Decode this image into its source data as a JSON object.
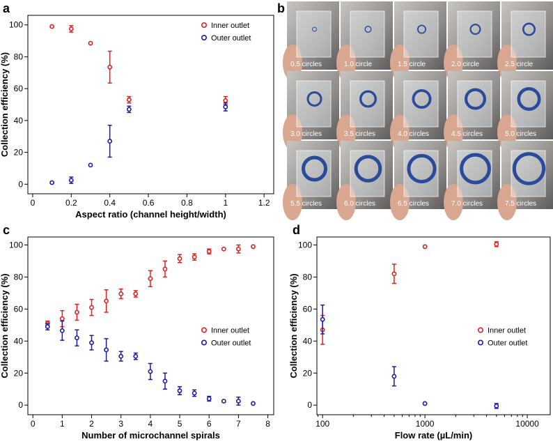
{
  "chart_data": [
    {
      "type": "scatter",
      "panel": "a",
      "x_label": "Aspect ratio (channel height/width)",
      "y_label": "Collection efficiency (%)",
      "x": [
        0.1,
        0.2,
        0.3,
        0.4,
        0.5,
        1.0
      ],
      "xlim": [
        -0.025,
        1.25
      ],
      "xticks": [
        0,
        0.2,
        0.4,
        0.6,
        0.8,
        1.0,
        1.2
      ],
      "ylim": [
        -6,
        106
      ],
      "yticks": [
        0,
        20,
        40,
        60,
        80,
        100
      ],
      "legend": "upper right",
      "series": [
        {
          "name": "Inner outlet",
          "color": "#e02020",
          "values": [
            99,
            97.5,
            88.5,
            73.5,
            53,
            52.5
          ],
          "errors": [
            0.5,
            2,
            0.5,
            10,
            2,
            2.5
          ]
        },
        {
          "name": "Outer outlet",
          "color": "#1a1aa8",
          "values": [
            1,
            2.5,
            12,
            27,
            47,
            48.5
          ],
          "errors": [
            0.5,
            2,
            0.5,
            10,
            2,
            2.5
          ]
        }
      ]
    },
    {
      "type": "scatter",
      "panel": "c",
      "x_label": "Number of microchannel spirals",
      "y_label": "Collection efficiency (%)",
      "x": [
        0.5,
        1,
        1.5,
        2,
        2.5,
        3,
        3.5,
        4,
        4.5,
        5,
        5.5,
        6,
        6.5,
        7,
        7.5
      ],
      "xlim": [
        -0.17,
        8.2
      ],
      "xticks": [
        0,
        1,
        2,
        3,
        4,
        5,
        6,
        7,
        8
      ],
      "ylim": [
        -6,
        105
      ],
      "yticks": [
        0,
        20,
        40,
        60,
        80,
        100
      ],
      "legend": "center right",
      "series": [
        {
          "name": "Inner outlet",
          "color": "#e02020",
          "values": [
            51,
            54,
            58,
            61,
            65,
            69.5,
            69.5,
            79,
            85,
            91.5,
            92.5,
            96,
            97.5,
            97.5,
            99
          ],
          "errors": [
            1.5,
            5,
            5,
            5,
            7,
            3,
            2,
            5,
            5,
            2.5,
            2,
            1.5,
            0.5,
            2.5,
            0.5
          ]
        },
        {
          "name": "Outer outlet",
          "color": "#1a1aa8",
          "values": [
            49,
            46.5,
            42,
            39,
            34.5,
            30.5,
            30.5,
            21,
            15,
            9,
            7.5,
            4,
            2.5,
            2.5,
            1
          ],
          "errors": [
            2,
            6,
            5,
            4.5,
            7,
            3,
            2,
            5,
            5,
            2.5,
            2,
            1.5,
            0.5,
            2.5,
            0.5
          ]
        }
      ]
    },
    {
      "type": "scatter",
      "panel": "d",
      "x_label": "Flow rate (µL/min)",
      "y_label": "Collection efficiency (%)",
      "x": [
        100,
        500,
        1000,
        5000
      ],
      "xscale": "log",
      "xlim": [
        88,
        16750
      ],
      "xticks": [
        100,
        1000,
        10000
      ],
      "ylim": [
        -6,
        105
      ],
      "yticks": [
        0,
        20,
        40,
        60,
        80,
        100
      ],
      "legend": "center right",
      "series": [
        {
          "name": "Inner outlet",
          "color": "#e02020",
          "values": [
            47,
            82,
            99,
            100.5
          ],
          "errors": [
            9,
            6,
            0.5,
            1.5
          ]
        },
        {
          "name": "Outer outlet",
          "color": "#1a1aa8",
          "values": [
            53.5,
            18,
            1,
            -0.5
          ],
          "errors": [
            9,
            6,
            0.5,
            1.5
          ]
        }
      ]
    }
  ],
  "photo_panel": {
    "panel": "b",
    "labels": [
      "0.5 circles",
      "1.0 circle",
      "1.5 circle",
      "2.0 circle",
      "2.5 circle",
      "3.0 circles",
      "3.5 circles",
      "4.0 circles",
      "4.5 circles",
      "5.0 circles",
      "5.5 circles",
      "6.0 circles",
      "6.5 circles",
      "7.0 circles",
      "7.5 circles"
    ]
  }
}
